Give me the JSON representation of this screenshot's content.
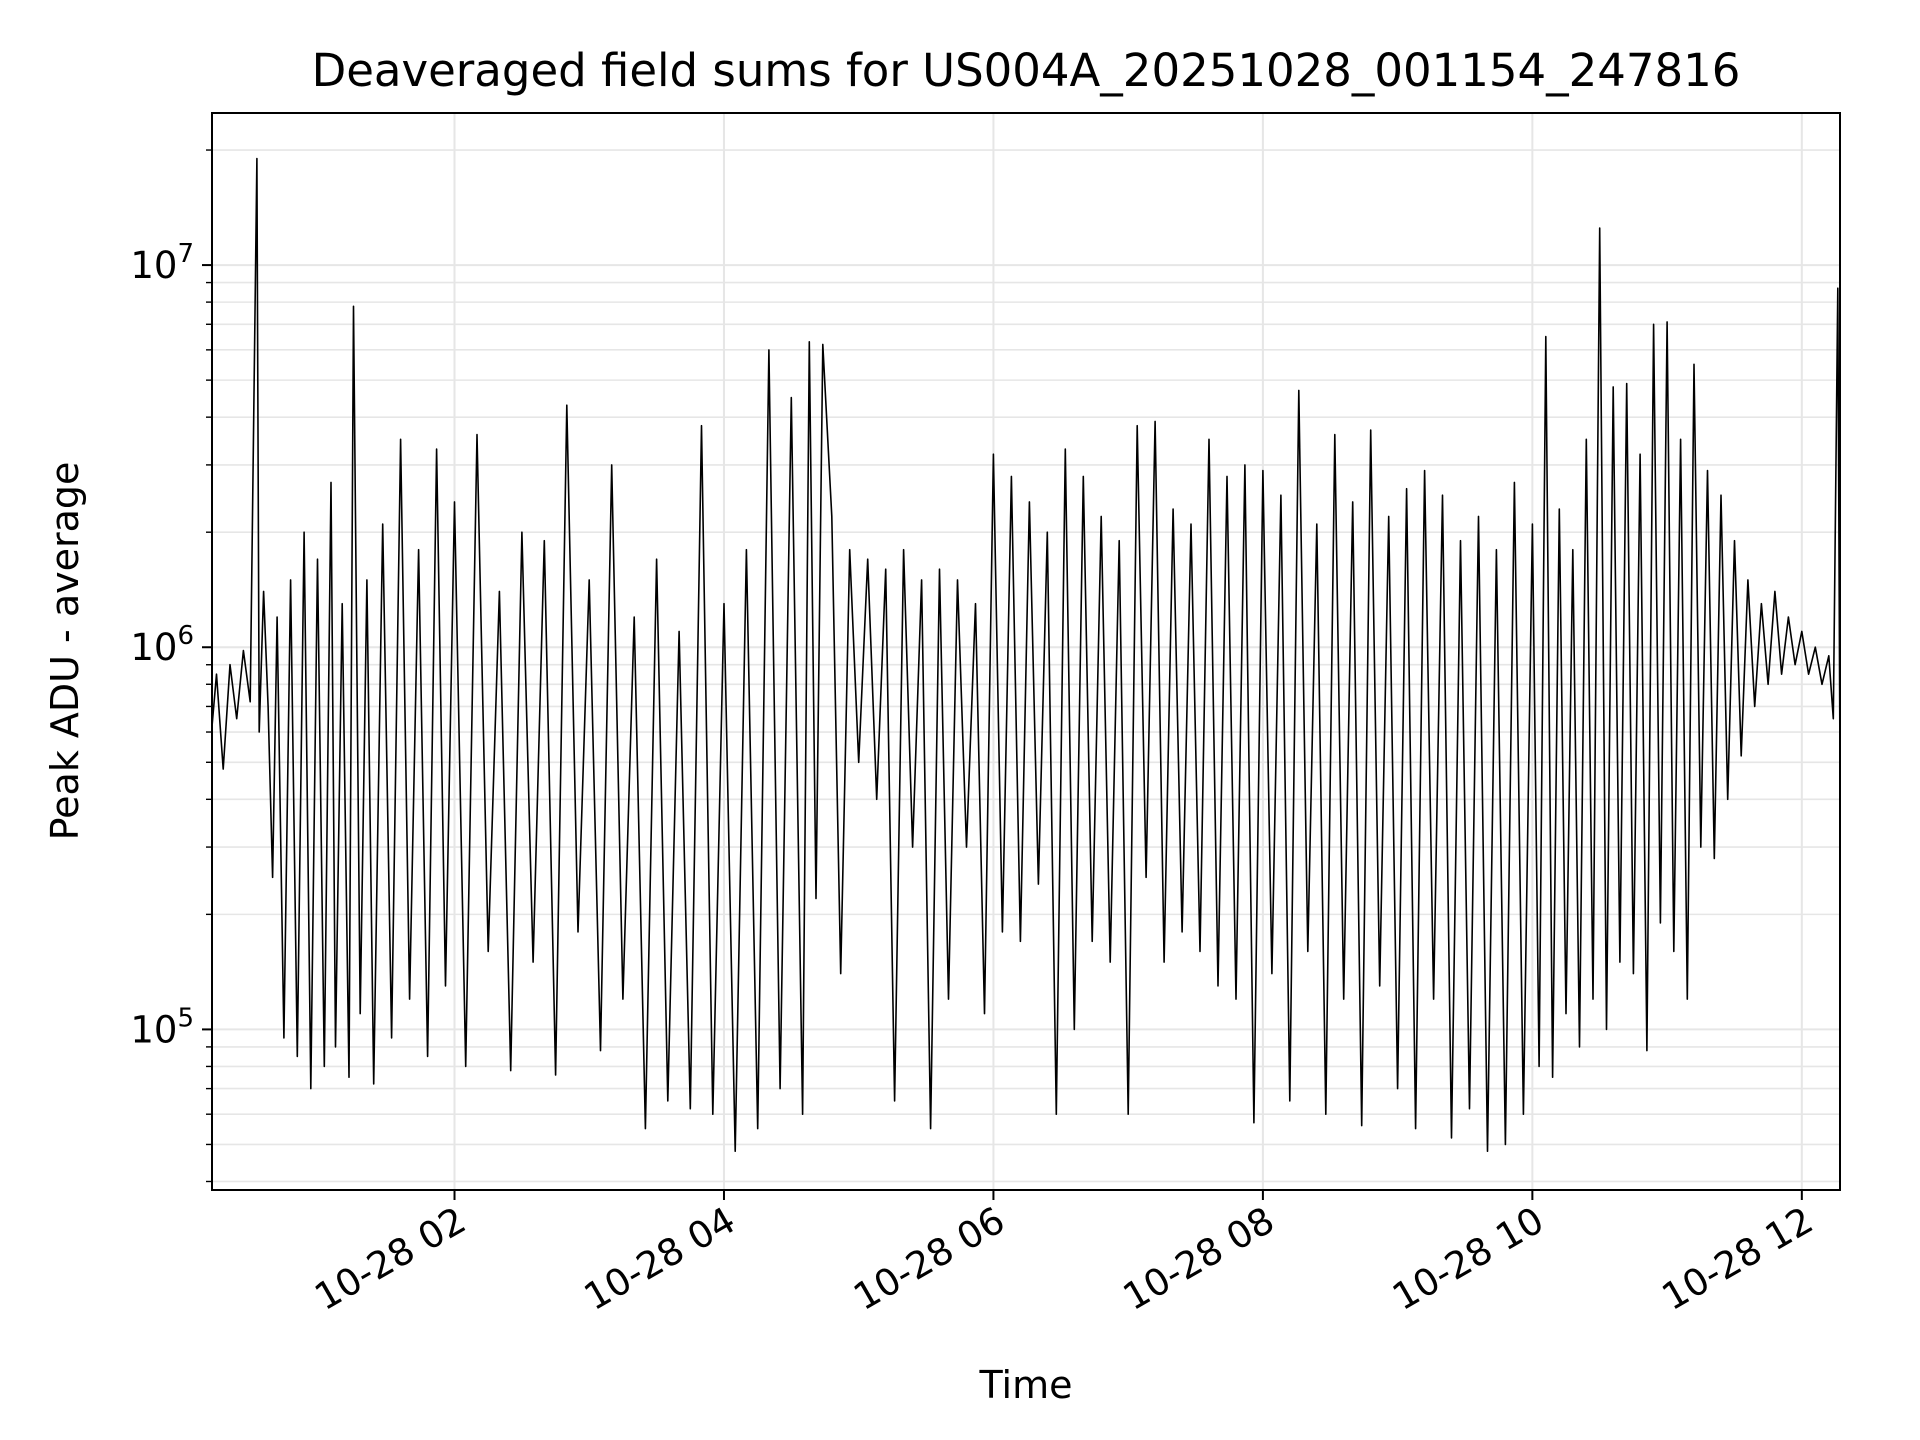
{
  "chart_data": {
    "type": "line",
    "title": "Deaveraged field sums for US004A_20251028_001154_247816",
    "xlabel": "Time",
    "ylabel": "Peak ADU - average",
    "yscale": "log",
    "grid": true,
    "legend": "none",
    "colors": {
      "line": "#000000",
      "grid": "#e6e6e6",
      "axes": "#000000",
      "background": "#ffffff"
    },
    "xlim": [
      "2025-10-28 00:12",
      "2025-10-28 12:17"
    ],
    "ylim": [
      38000,
      25000000
    ],
    "x_ticks": [
      {
        "value": "2025-10-28 02:00",
        "label": "10-28 02"
      },
      {
        "value": "2025-10-28 04:00",
        "label": "10-28 04"
      },
      {
        "value": "2025-10-28 06:00",
        "label": "10-28 06"
      },
      {
        "value": "2025-10-28 08:00",
        "label": "10-28 08"
      },
      {
        "value": "2025-10-28 10:00",
        "label": "10-28 10"
      },
      {
        "value": "2025-10-28 12:00",
        "label": "10-28 12"
      }
    ],
    "y_ticks": [
      {
        "value": 100000,
        "base": "10",
        "exponent": "5"
      },
      {
        "value": 1000000,
        "base": "10",
        "exponent": "6"
      },
      {
        "value": 10000000,
        "base": "10",
        "exponent": "7"
      }
    ],
    "series": [
      {
        "points": [
          [
            "00:12",
            620000
          ],
          [
            "00:14",
            850000
          ],
          [
            "00:17",
            480000
          ],
          [
            "00:20",
            900000
          ],
          [
            "00:23",
            650000
          ],
          [
            "00:26",
            980000
          ],
          [
            "00:29",
            720000
          ],
          [
            "00:32",
            19000000
          ],
          [
            "00:33",
            600000
          ],
          [
            "00:35",
            1400000
          ],
          [
            "00:37",
            700000
          ],
          [
            "00:39",
            250000
          ],
          [
            "00:41",
            1200000
          ],
          [
            "00:44",
            95000
          ],
          [
            "00:47",
            1500000
          ],
          [
            "00:50",
            85000
          ],
          [
            "00:53",
            2000000
          ],
          [
            "00:56",
            70000
          ],
          [
            "00:59",
            1700000
          ],
          [
            "01:02",
            80000
          ],
          [
            "01:05",
            2700000
          ],
          [
            "01:07",
            90000
          ],
          [
            "01:10",
            1300000
          ],
          [
            "01:13",
            75000
          ],
          [
            "01:15",
            7800000
          ],
          [
            "01:18",
            110000
          ],
          [
            "01:21",
            1500000
          ],
          [
            "01:24",
            72000
          ],
          [
            "01:28",
            2100000
          ],
          [
            "01:32",
            95000
          ],
          [
            "01:36",
            3500000
          ],
          [
            "01:40",
            120000
          ],
          [
            "01:44",
            1800000
          ],
          [
            "01:48",
            85000
          ],
          [
            "01:52",
            3300000
          ],
          [
            "01:56",
            130000
          ],
          [
            "02:00",
            2400000
          ],
          [
            "02:05",
            80000
          ],
          [
            "02:10",
            3600000
          ],
          [
            "02:15",
            160000
          ],
          [
            "02:20",
            1400000
          ],
          [
            "02:25",
            78000
          ],
          [
            "02:30",
            2000000
          ],
          [
            "02:35",
            150000
          ],
          [
            "02:40",
            1900000
          ],
          [
            "02:45",
            76000
          ],
          [
            "02:50",
            4300000
          ],
          [
            "02:55",
            180000
          ],
          [
            "03:00",
            1500000
          ],
          [
            "03:05",
            88000
          ],
          [
            "03:10",
            3000000
          ],
          [
            "03:15",
            120000
          ],
          [
            "03:20",
            1200000
          ],
          [
            "03:25",
            55000
          ],
          [
            "03:30",
            1700000
          ],
          [
            "03:35",
            65000
          ],
          [
            "03:40",
            1100000
          ],
          [
            "03:45",
            62000
          ],
          [
            "03:50",
            3800000
          ],
          [
            "03:55",
            60000
          ],
          [
            "04:00",
            1300000
          ],
          [
            "04:05",
            48000
          ],
          [
            "04:10",
            1800000
          ],
          [
            "04:15",
            55000
          ],
          [
            "04:20",
            6000000
          ],
          [
            "04:25",
            70000
          ],
          [
            "04:30",
            4500000
          ],
          [
            "04:35",
            60000
          ],
          [
            "04:38",
            6300000
          ],
          [
            "04:41",
            220000
          ],
          [
            "04:44",
            6200000
          ],
          [
            "04:48",
            2200000
          ],
          [
            "04:52",
            140000
          ],
          [
            "04:56",
            1800000
          ],
          [
            "05:00",
            500000
          ],
          [
            "05:04",
            1700000
          ],
          [
            "05:08",
            400000
          ],
          [
            "05:12",
            1600000
          ],
          [
            "05:16",
            65000
          ],
          [
            "05:20",
            1800000
          ],
          [
            "05:24",
            300000
          ],
          [
            "05:28",
            1500000
          ],
          [
            "05:32",
            55000
          ],
          [
            "05:36",
            1600000
          ],
          [
            "05:40",
            120000
          ],
          [
            "05:44",
            1500000
          ],
          [
            "05:48",
            300000
          ],
          [
            "05:52",
            1300000
          ],
          [
            "05:56",
            110000
          ],
          [
            "06:00",
            3200000
          ],
          [
            "06:04",
            180000
          ],
          [
            "06:08",
            2800000
          ],
          [
            "06:12",
            170000
          ],
          [
            "06:16",
            2400000
          ],
          [
            "06:20",
            240000
          ],
          [
            "06:24",
            2000000
          ],
          [
            "06:28",
            60000
          ],
          [
            "06:32",
            3300000
          ],
          [
            "06:36",
            100000
          ],
          [
            "06:40",
            2800000
          ],
          [
            "06:44",
            170000
          ],
          [
            "06:48",
            2200000
          ],
          [
            "06:52",
            150000
          ],
          [
            "06:56",
            1900000
          ],
          [
            "07:00",
            60000
          ],
          [
            "07:04",
            3800000
          ],
          [
            "07:08",
            250000
          ],
          [
            "07:12",
            3900000
          ],
          [
            "07:16",
            150000
          ],
          [
            "07:20",
            2300000
          ],
          [
            "07:24",
            180000
          ],
          [
            "07:28",
            2100000
          ],
          [
            "07:32",
            160000
          ],
          [
            "07:36",
            3500000
          ],
          [
            "07:40",
            130000
          ],
          [
            "07:44",
            2800000
          ],
          [
            "07:48",
            120000
          ],
          [
            "07:52",
            3000000
          ],
          [
            "07:56",
            57000
          ],
          [
            "08:00",
            2900000
          ],
          [
            "08:04",
            140000
          ],
          [
            "08:08",
            2500000
          ],
          [
            "08:12",
            65000
          ],
          [
            "08:16",
            4700000
          ],
          [
            "08:20",
            160000
          ],
          [
            "08:24",
            2100000
          ],
          [
            "08:28",
            60000
          ],
          [
            "08:32",
            3600000
          ],
          [
            "08:36",
            120000
          ],
          [
            "08:40",
            2400000
          ],
          [
            "08:44",
            56000
          ],
          [
            "08:48",
            3700000
          ],
          [
            "08:52",
            130000
          ],
          [
            "08:56",
            2200000
          ],
          [
            "09:00",
            70000
          ],
          [
            "09:04",
            2600000
          ],
          [
            "09:08",
            55000
          ],
          [
            "09:12",
            2900000
          ],
          [
            "09:16",
            120000
          ],
          [
            "09:20",
            2500000
          ],
          [
            "09:24",
            52000
          ],
          [
            "09:28",
            1900000
          ],
          [
            "09:32",
            62000
          ],
          [
            "09:36",
            2200000
          ],
          [
            "09:40",
            48000
          ],
          [
            "09:44",
            1800000
          ],
          [
            "09:48",
            50000
          ],
          [
            "09:52",
            2700000
          ],
          [
            "09:56",
            60000
          ],
          [
            "10:00",
            2100000
          ],
          [
            "10:03",
            80000
          ],
          [
            "10:06",
            6500000
          ],
          [
            "10:09",
            75000
          ],
          [
            "10:12",
            2300000
          ],
          [
            "10:15",
            110000
          ],
          [
            "10:18",
            1800000
          ],
          [
            "10:21",
            90000
          ],
          [
            "10:24",
            3500000
          ],
          [
            "10:27",
            120000
          ],
          [
            "10:30",
            12500000
          ],
          [
            "10:33",
            100000
          ],
          [
            "10:36",
            4800000
          ],
          [
            "10:39",
            150000
          ],
          [
            "10:42",
            4900000
          ],
          [
            "10:45",
            140000
          ],
          [
            "10:48",
            3200000
          ],
          [
            "10:51",
            88000
          ],
          [
            "10:54",
            7000000
          ],
          [
            "10:57",
            190000
          ],
          [
            "11:00",
            7100000
          ],
          [
            "11:03",
            160000
          ],
          [
            "11:06",
            3500000
          ],
          [
            "11:09",
            120000
          ],
          [
            "11:12",
            5500000
          ],
          [
            "11:15",
            300000
          ],
          [
            "11:18",
            2900000
          ],
          [
            "11:21",
            280000
          ],
          [
            "11:24",
            2500000
          ],
          [
            "11:27",
            400000
          ],
          [
            "11:30",
            1900000
          ],
          [
            "11:33",
            520000
          ],
          [
            "11:36",
            1500000
          ],
          [
            "11:39",
            700000
          ],
          [
            "11:42",
            1300000
          ],
          [
            "11:45",
            800000
          ],
          [
            "11:48",
            1400000
          ],
          [
            "11:51",
            850000
          ],
          [
            "11:54",
            1200000
          ],
          [
            "11:57",
            900000
          ],
          [
            "12:00",
            1100000
          ],
          [
            "12:03",
            850000
          ],
          [
            "12:06",
            1000000
          ],
          [
            "12:09",
            800000
          ],
          [
            "12:12",
            950000
          ],
          [
            "12:14",
            650000
          ],
          [
            "12:16",
            8700000
          ],
          [
            "12:17",
            480000
          ]
        ]
      }
    ]
  }
}
